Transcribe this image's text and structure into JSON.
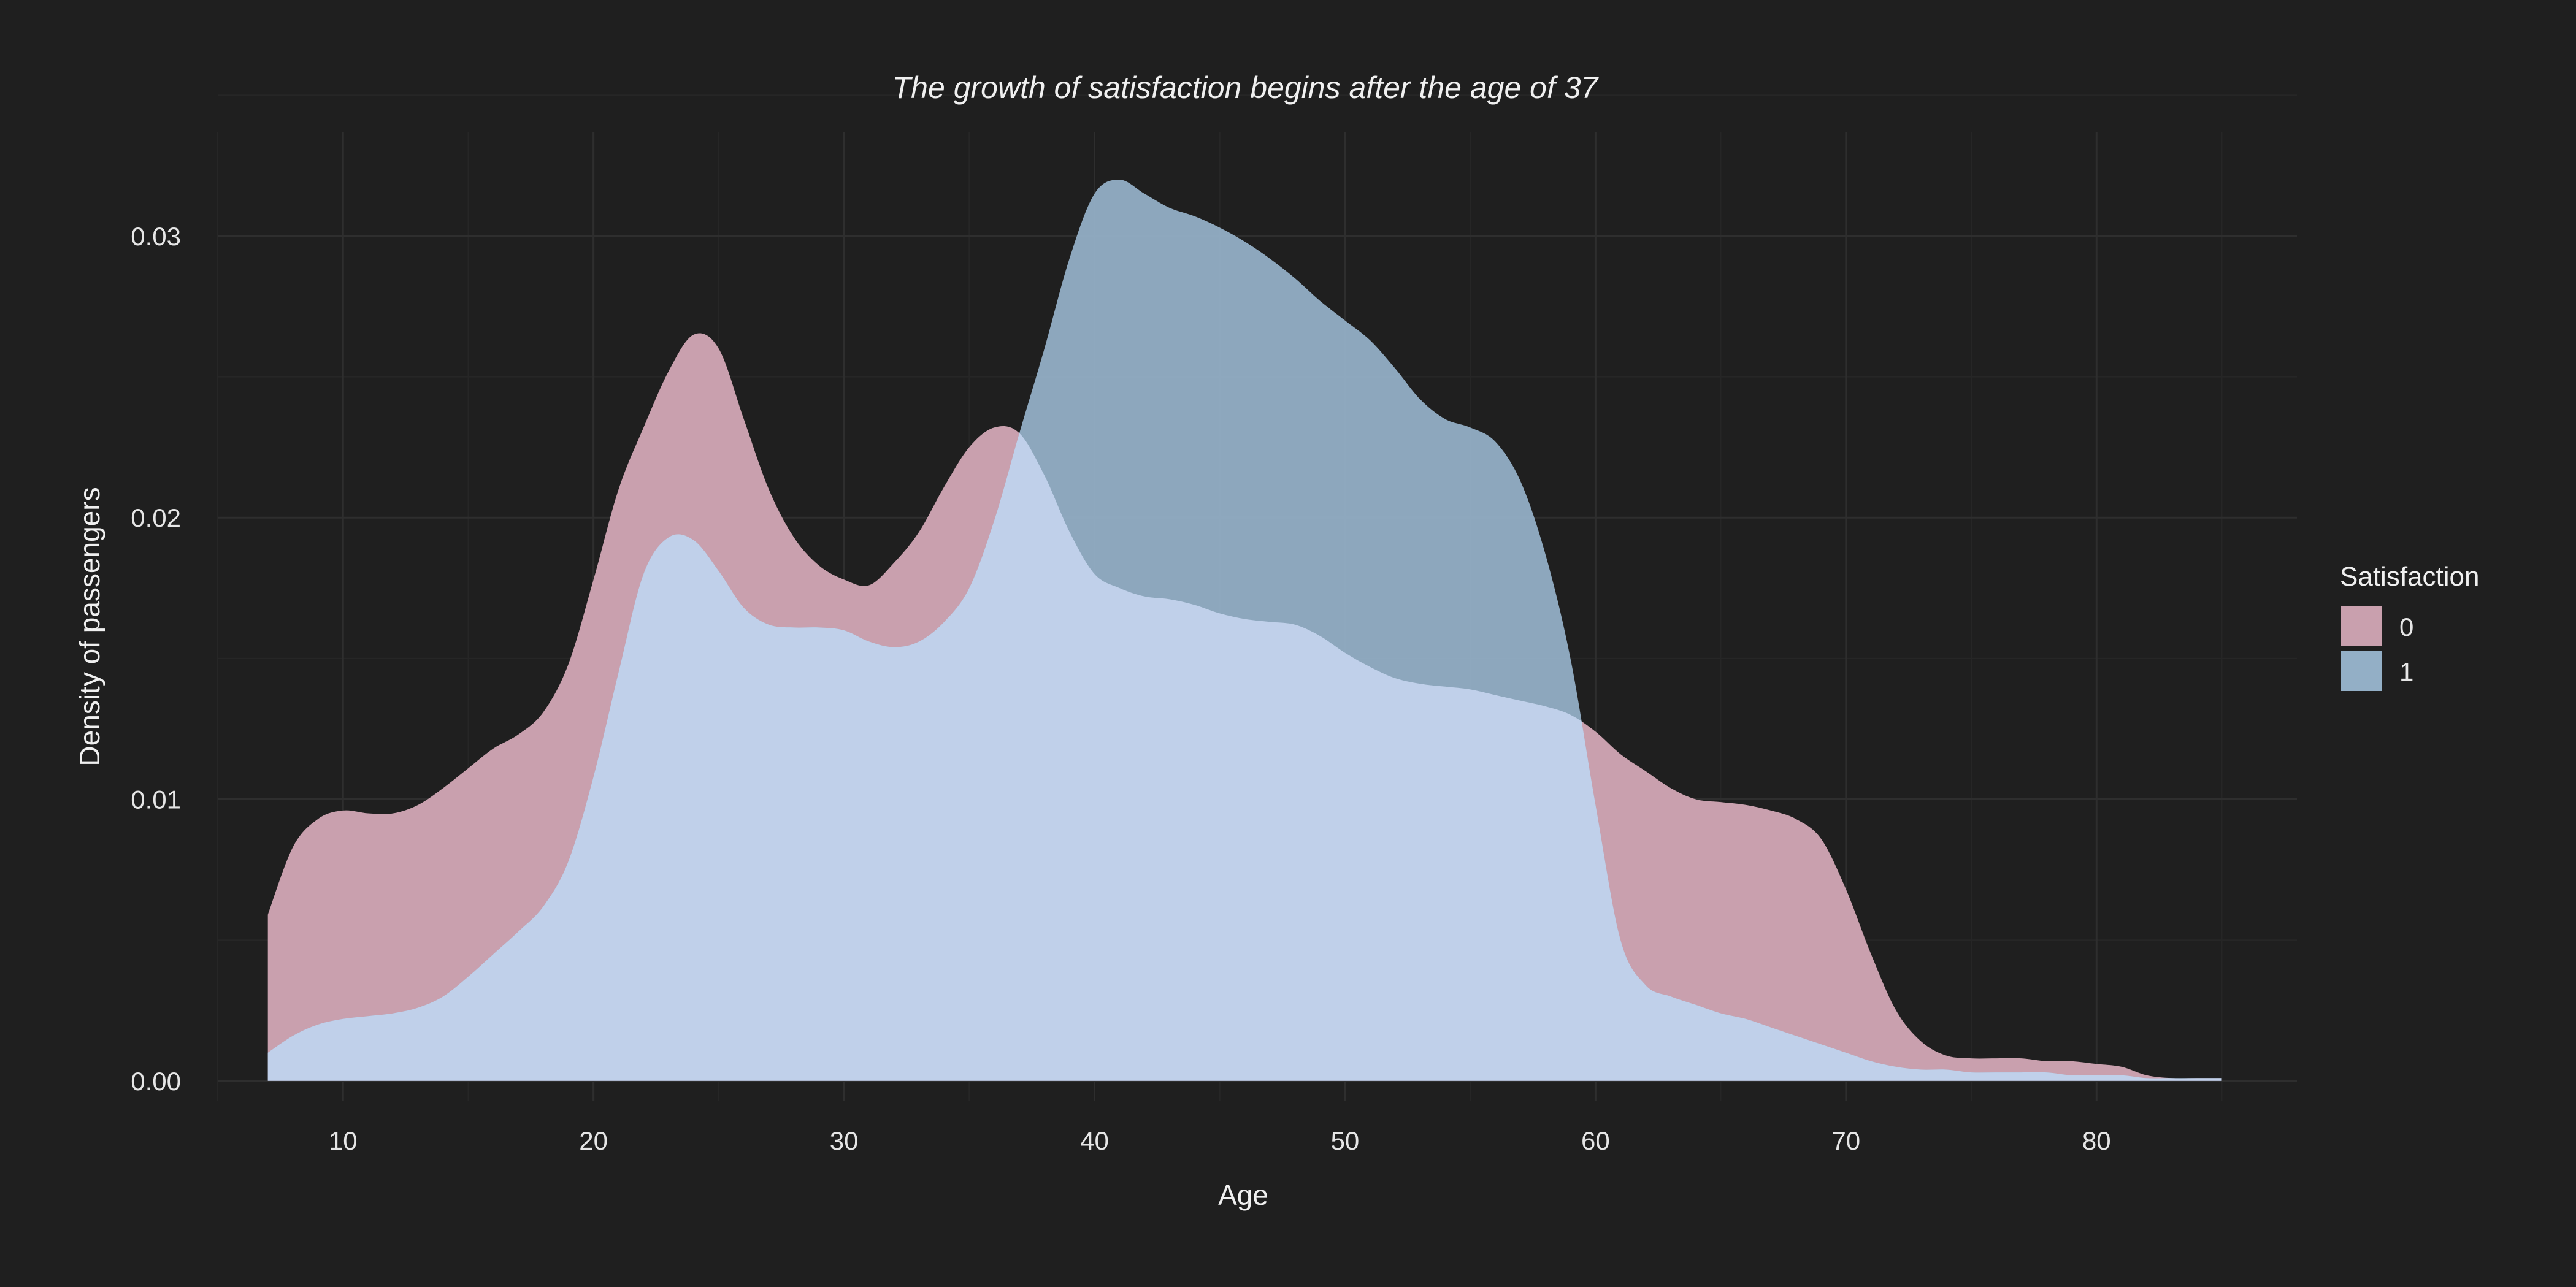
{
  "chart_data": {
    "type": "area",
    "title": "The growth of satisfaction begins after the age of 37",
    "xlabel": "Age",
    "ylabel": "Density of passengers",
    "xlim": [
      5,
      88
    ],
    "ylim": [
      -0.0007,
      0.0337
    ],
    "x_ticks": [
      10,
      20,
      30,
      40,
      50,
      60,
      70,
      80
    ],
    "x_tick_labels": [
      "10",
      "20",
      "30",
      "40",
      "50",
      "60",
      "70",
      "80"
    ],
    "y_ticks": [
      0,
      0.01,
      0.02,
      0.03
    ],
    "y_tick_labels": [
      "0.00",
      "0.01",
      "0.02",
      "0.03"
    ],
    "grid": true,
    "legend": {
      "title": "Satisfaction",
      "position": "right"
    },
    "series": [
      {
        "name": "0",
        "color": "#c9a0ae",
        "opacity": 1.0,
        "x": [
          7,
          8,
          9,
          10,
          11,
          12,
          13,
          14,
          15,
          16,
          17,
          18,
          19,
          20,
          21,
          22,
          23,
          24,
          25,
          26,
          27,
          28,
          29,
          30,
          31,
          32,
          33,
          34,
          35,
          36,
          37,
          38,
          39,
          40,
          41,
          42,
          43,
          44,
          45,
          46,
          47,
          48,
          49,
          50,
          51,
          52,
          53,
          54,
          55,
          56,
          57,
          58,
          59,
          60,
          61,
          62,
          63,
          64,
          65,
          66,
          67,
          68,
          69,
          70,
          71,
          72,
          73,
          74,
          75,
          76,
          77,
          78,
          79,
          80,
          81,
          82,
          83,
          84,
          85
        ],
        "y": [
          0.0059,
          0.0083,
          0.0093,
          0.0096,
          0.0095,
          0.0095,
          0.0098,
          0.0104,
          0.0111,
          0.0118,
          0.0123,
          0.0131,
          0.0148,
          0.0178,
          0.021,
          0.0232,
          0.0252,
          0.0265,
          0.026,
          0.0235,
          0.021,
          0.0193,
          0.0183,
          0.0178,
          0.0176,
          0.0184,
          0.0195,
          0.0211,
          0.0225,
          0.0232,
          0.023,
          0.0215,
          0.0195,
          0.018,
          0.0175,
          0.0172,
          0.0171,
          0.0169,
          0.0166,
          0.0164,
          0.0163,
          0.0162,
          0.0158,
          0.0152,
          0.0147,
          0.0143,
          0.0141,
          0.014,
          0.0139,
          0.0137,
          0.0135,
          0.0133,
          0.013,
          0.0124,
          0.0116,
          0.011,
          0.0104,
          0.01,
          0.0099,
          0.0098,
          0.0096,
          0.0093,
          0.0086,
          0.0068,
          0.0045,
          0.0025,
          0.0014,
          0.0009,
          0.0008,
          0.0008,
          0.0008,
          0.0007,
          0.0007,
          0.0006,
          0.0005,
          0.0002,
          0.0001,
          0.0001,
          0.0001
        ]
      },
      {
        "name": "1",
        "color": "#93afc6",
        "overlap_color": "#c0d0ea",
        "opacity": 0.95,
        "x": [
          7,
          8,
          9,
          10,
          11,
          12,
          13,
          14,
          15,
          16,
          17,
          18,
          19,
          20,
          21,
          22,
          23,
          24,
          25,
          26,
          27,
          28,
          29,
          30,
          31,
          32,
          33,
          34,
          35,
          36,
          37,
          38,
          39,
          40,
          41,
          42,
          43,
          44,
          45,
          46,
          47,
          48,
          49,
          50,
          51,
          52,
          53,
          54,
          55,
          56,
          57,
          58,
          59,
          60,
          61,
          62,
          63,
          64,
          65,
          66,
          67,
          68,
          69,
          70,
          71,
          72,
          73,
          74,
          75,
          76,
          77,
          78,
          79,
          80,
          81,
          82,
          83,
          84,
          85
        ],
        "y": [
          0.001,
          0.0016,
          0.002,
          0.0022,
          0.0023,
          0.0024,
          0.0026,
          0.003,
          0.0037,
          0.0045,
          0.0053,
          0.0062,
          0.0078,
          0.0108,
          0.0145,
          0.018,
          0.0193,
          0.0192,
          0.0181,
          0.0168,
          0.0162,
          0.0161,
          0.0161,
          0.016,
          0.0156,
          0.0154,
          0.0156,
          0.0163,
          0.0175,
          0.0199,
          0.023,
          0.026,
          0.0292,
          0.0315,
          0.032,
          0.0315,
          0.031,
          0.0307,
          0.0303,
          0.0298,
          0.0292,
          0.0285,
          0.0277,
          0.027,
          0.0263,
          0.0253,
          0.0242,
          0.0235,
          0.0232,
          0.0227,
          0.0213,
          0.0187,
          0.015,
          0.0098,
          0.005,
          0.0034,
          0.003,
          0.0027,
          0.0024,
          0.0022,
          0.0019,
          0.0016,
          0.0013,
          0.001,
          0.0007,
          0.0005,
          0.0004,
          0.0004,
          0.0003,
          0.0003,
          0.0003,
          0.0003,
          0.0002,
          0.0002,
          0.0002,
          0.0001,
          0.0001,
          0.0001,
          0.0001
        ]
      }
    ]
  }
}
